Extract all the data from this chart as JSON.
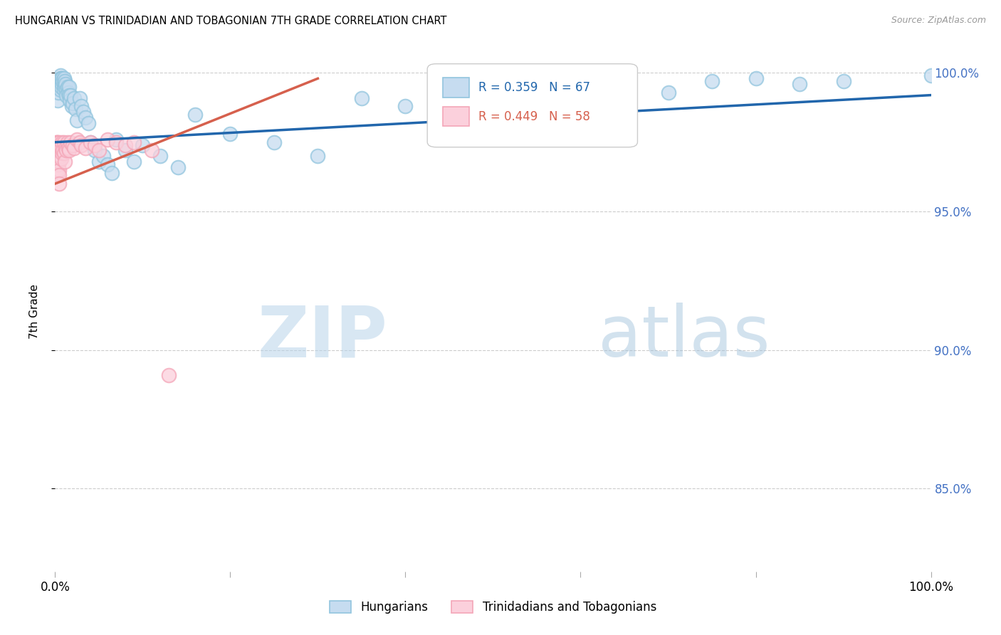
{
  "title": "HUNGARIAN VS TRINIDADIAN AND TOBAGONIAN 7TH GRADE CORRELATION CHART",
  "source": "Source: ZipAtlas.com",
  "ylabel": "7th Grade",
  "yaxis_ticks": [
    "100.0%",
    "95.0%",
    "90.0%",
    "85.0%"
  ],
  "yaxis_tick_vals": [
    1.0,
    0.95,
    0.9,
    0.85
  ],
  "watermark_zip": "ZIP",
  "watermark_atlas": "atlas",
  "blue_color": "#92c5de",
  "pink_color": "#f4a6b8",
  "blue_line_color": "#2166ac",
  "pink_line_color": "#d6604d",
  "bg_color": "#ffffff",
  "grid_color": "#cccccc",
  "blue_scatter": {
    "x": [
      0.003,
      0.004,
      0.005,
      0.005,
      0.006,
      0.006,
      0.006,
      0.006,
      0.006,
      0.006,
      0.007,
      0.007,
      0.007,
      0.008,
      0.008,
      0.009,
      0.01,
      0.01,
      0.01,
      0.011,
      0.011,
      0.012,
      0.013,
      0.013,
      0.014,
      0.015,
      0.016,
      0.016,
      0.017,
      0.018,
      0.019,
      0.02,
      0.022,
      0.023,
      0.025,
      0.028,
      0.03,
      0.032,
      0.035,
      0.038,
      0.04,
      0.045,
      0.05,
      0.055,
      0.06,
      0.065,
      0.07,
      0.08,
      0.09,
      0.1,
      0.12,
      0.14,
      0.16,
      0.2,
      0.25,
      0.3,
      0.35,
      0.4,
      0.5,
      0.6,
      0.65,
      0.7,
      0.75,
      0.8,
      0.85,
      0.9,
      1.0
    ],
    "y": [
      0.99,
      0.993,
      0.997,
      0.996,
      0.999,
      0.998,
      0.997,
      0.996,
      0.995,
      0.994,
      0.998,
      0.997,
      0.995,
      0.998,
      0.996,
      0.997,
      0.998,
      0.996,
      0.994,
      0.997,
      0.995,
      0.996,
      0.994,
      0.992,
      0.995,
      0.993,
      0.995,
      0.992,
      0.99,
      0.992,
      0.988,
      0.989,
      0.991,
      0.987,
      0.983,
      0.991,
      0.988,
      0.986,
      0.984,
      0.982,
      0.975,
      0.972,
      0.968,
      0.97,
      0.967,
      0.964,
      0.976,
      0.972,
      0.968,
      0.974,
      0.97,
      0.966,
      0.985,
      0.978,
      0.975,
      0.97,
      0.991,
      0.988,
      0.99,
      0.993,
      0.995,
      0.993,
      0.997,
      0.998,
      0.996,
      0.997,
      0.999
    ]
  },
  "pink_scatter": {
    "x": [
      0.001,
      0.001,
      0.001,
      0.001,
      0.001,
      0.001,
      0.002,
      0.002,
      0.002,
      0.002,
      0.002,
      0.003,
      0.003,
      0.003,
      0.003,
      0.003,
      0.003,
      0.004,
      0.004,
      0.004,
      0.005,
      0.005,
      0.005,
      0.005,
      0.005,
      0.005,
      0.005,
      0.006,
      0.006,
      0.007,
      0.007,
      0.008,
      0.008,
      0.009,
      0.01,
      0.01,
      0.011,
      0.012,
      0.013,
      0.014,
      0.015,
      0.016,
      0.018,
      0.02,
      0.022,
      0.025,
      0.028,
      0.03,
      0.035,
      0.04,
      0.045,
      0.05,
      0.06,
      0.07,
      0.08,
      0.09,
      0.11,
      0.13
    ],
    "y": [
      0.975,
      0.973,
      0.971,
      0.969,
      0.967,
      0.965,
      0.975,
      0.973,
      0.97,
      0.968,
      0.965,
      0.975,
      0.973,
      0.971,
      0.968,
      0.965,
      0.963,
      0.974,
      0.971,
      0.967,
      0.975,
      0.973,
      0.97,
      0.968,
      0.965,
      0.963,
      0.96,
      0.974,
      0.97,
      0.973,
      0.969,
      0.975,
      0.971,
      0.972,
      0.975,
      0.971,
      0.968,
      0.973,
      0.972,
      0.975,
      0.973,
      0.972,
      0.975,
      0.974,
      0.973,
      0.976,
      0.975,
      0.974,
      0.973,
      0.975,
      0.974,
      0.972,
      0.976,
      0.975,
      0.974,
      0.975,
      0.972,
      0.891
    ]
  },
  "blue_line": {
    "x0": 0.0,
    "x1": 1.0,
    "y0": 0.975,
    "y1": 0.992
  },
  "pink_line": {
    "x0": 0.0,
    "x1": 0.3,
    "y0": 0.96,
    "y1": 0.998
  },
  "xlim": [
    0.0,
    1.0
  ],
  "ylim": [
    0.82,
    1.008
  ]
}
